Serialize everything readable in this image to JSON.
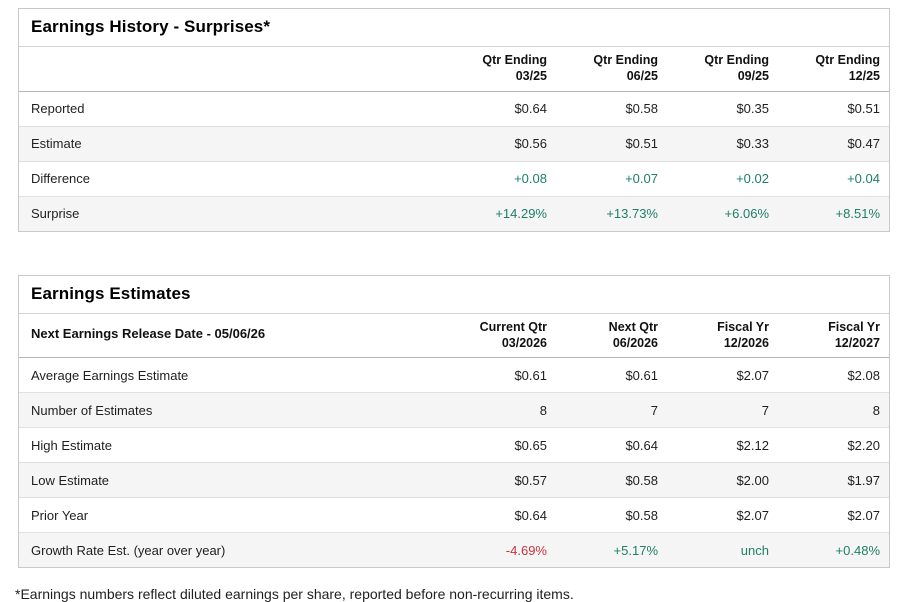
{
  "colors": {
    "positive": "#1e8067",
    "negative": "#c43340"
  },
  "history": {
    "title": "Earnings History - Surprises*",
    "corner": "",
    "columns": [
      "Qtr Ending\n03/25",
      "Qtr Ending\n06/25",
      "Qtr Ending\n09/25",
      "Qtr Ending\n12/25"
    ],
    "rows": [
      {
        "label": "Reported",
        "values": [
          "$0.64",
          "$0.58",
          "$0.35",
          "$0.51"
        ],
        "tones": [
          "",
          "",
          "",
          ""
        ]
      },
      {
        "label": "Estimate",
        "values": [
          "$0.56",
          "$0.51",
          "$0.33",
          "$0.47"
        ],
        "tones": [
          "",
          "",
          "",
          ""
        ]
      },
      {
        "label": "Difference",
        "values": [
          "+0.08",
          "+0.07",
          "+0.02",
          "+0.04"
        ],
        "tones": [
          "pos",
          "pos",
          "pos",
          "pos"
        ]
      },
      {
        "label": "Surprise",
        "values": [
          "+14.29%",
          "+13.73%",
          "+6.06%",
          "+8.51%"
        ],
        "tones": [
          "pos",
          "pos",
          "pos",
          "pos"
        ]
      }
    ]
  },
  "estimates": {
    "title": "Earnings Estimates",
    "corner": "Next Earnings Release Date - 05/06/26",
    "columns": [
      "Current Qtr\n03/2026",
      "Next Qtr\n06/2026",
      "Fiscal Yr\n12/2026",
      "Fiscal Yr\n12/2027"
    ],
    "rows": [
      {
        "label": "Average Earnings Estimate",
        "values": [
          "$0.61",
          "$0.61",
          "$2.07",
          "$2.08"
        ],
        "tones": [
          "",
          "",
          "",
          ""
        ]
      },
      {
        "label": "Number of Estimates",
        "values": [
          "8",
          "7",
          "7",
          "8"
        ],
        "tones": [
          "",
          "",
          "",
          ""
        ]
      },
      {
        "label": "High Estimate",
        "values": [
          "$0.65",
          "$0.64",
          "$2.12",
          "$2.20"
        ],
        "tones": [
          "",
          "",
          "",
          ""
        ]
      },
      {
        "label": "Low Estimate",
        "values": [
          "$0.57",
          "$0.58",
          "$2.00",
          "$1.97"
        ],
        "tones": [
          "",
          "",
          "",
          ""
        ]
      },
      {
        "label": "Prior Year",
        "values": [
          "$0.64",
          "$0.58",
          "$2.07",
          "$2.07"
        ],
        "tones": [
          "",
          "",
          "",
          ""
        ]
      },
      {
        "label": "Growth Rate Est. (year over year)",
        "values": [
          "-4.69%",
          "+5.17%",
          "unch",
          "+0.48%"
        ],
        "tones": [
          "neg",
          "pos",
          "pos",
          "pos"
        ]
      }
    ]
  },
  "footnote": "*Earnings numbers reflect diluted earnings per share, reported before non-recurring items."
}
